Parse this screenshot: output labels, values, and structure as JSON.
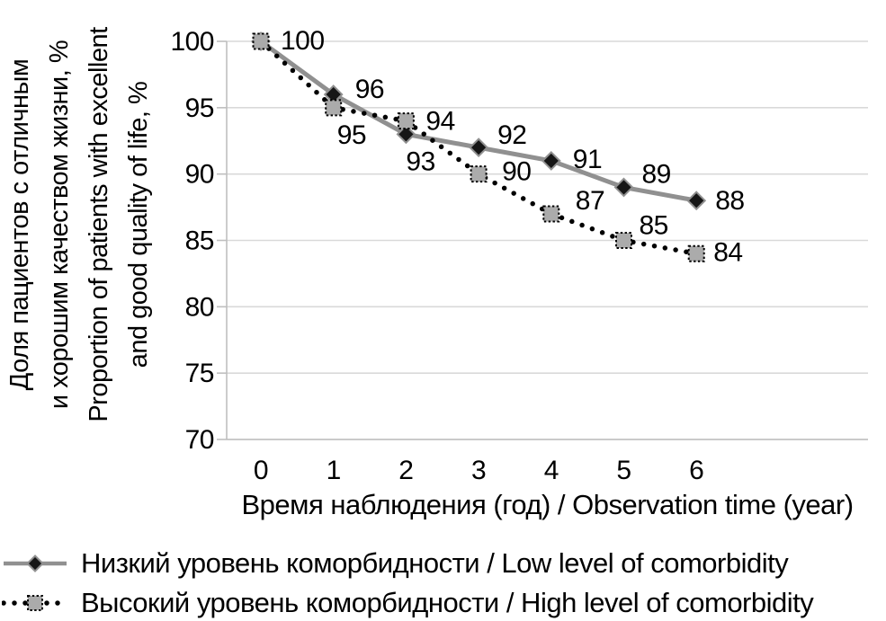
{
  "chart_data": {
    "type": "line",
    "x": [
      0,
      1,
      2,
      3,
      4,
      5,
      6
    ],
    "series": [
      {
        "name": "Низкий уровень коморбидности / Low level of comorbidity",
        "values": [
          100,
          96,
          93,
          92,
          91,
          89,
          88
        ],
        "line_style": "solid",
        "line_color": "#909090",
        "marker": "diamond",
        "marker_fill": "#161616",
        "marker_stroke": "#909090",
        "label_offsets": [
          [
            22,
            -1
          ],
          [
            24,
            -6
          ],
          [
            0,
            30
          ],
          [
            21,
            -14
          ],
          [
            24,
            -2
          ],
          [
            20,
            -15
          ],
          [
            21,
            0
          ]
        ]
      },
      {
        "name": "Высокий уровень коморбидности / High level of comorbidity",
        "values": [
          100,
          95,
          94,
          90,
          87,
          85,
          84
        ],
        "line_style": "dotted",
        "line_color": "#000000",
        "marker": "square",
        "marker_fill": "#ababab",
        "marker_stroke": "#000000",
        "label_offsets": [
          null,
          [
            4,
            30
          ],
          [
            22,
            0
          ],
          [
            26,
            -3
          ],
          [
            27,
            -15
          ],
          [
            17,
            -17
          ],
          [
            19,
            -2
          ]
        ]
      }
    ],
    "xlabel": "Время наблюдения (год) / Observation time (year)",
    "ylabel_lines": [
      "Доля пациентов с отличным",
      "и хорошим качеством жизни, %",
      "Proportion of patients with excellent",
      "and good quality of life, %"
    ],
    "xticks": [
      0,
      1,
      2,
      3,
      4,
      5,
      6
    ],
    "yticks": [
      70,
      75,
      80,
      85,
      90,
      95,
      100
    ],
    "ylim": [
      70,
      100
    ],
    "grid": "horizontal",
    "legend_position": "bottom-left"
  },
  "colors": {
    "gridline": "#d9d9d9",
    "axis": "#bfbfbf",
    "text": "#000000",
    "background": "#ffffff"
  }
}
